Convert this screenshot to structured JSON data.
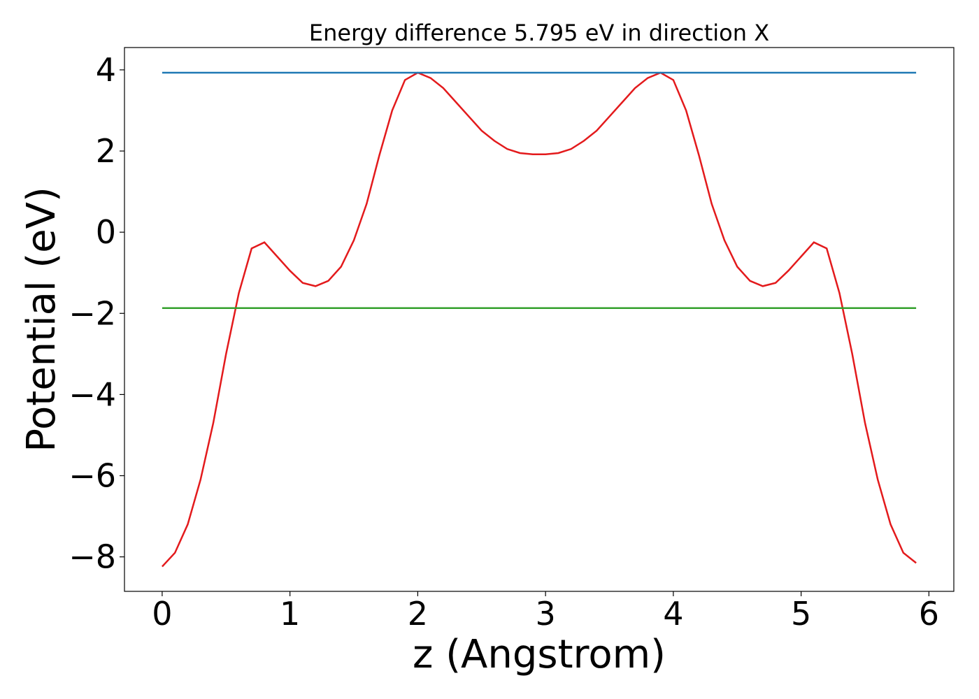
{
  "chart_data": {
    "type": "line",
    "title": "Energy difference 5.795 eV in direction X",
    "x_label": "z (Angstrom)",
    "y_label": "Potential (eV)",
    "xlim": [
      -0.295,
      6.195
    ],
    "ylim": [
      -8.85,
      4.55
    ],
    "xticks": [
      0,
      1,
      2,
      3,
      4,
      5,
      6
    ],
    "yticks": [
      {
        "value": -8,
        "label": "−8"
      },
      {
        "value": -6,
        "label": "−6"
      },
      {
        "value": -4,
        "label": "−4"
      },
      {
        "value": -2,
        "label": "−2"
      },
      0,
      2,
      4
    ],
    "series": [
      {
        "color": "#e31a1c",
        "x": [
          0,
          0.1,
          0.2,
          0.3,
          0.4,
          0.5,
          0.6,
          0.7,
          0.8,
          0.9,
          1.0,
          1.1,
          1.2,
          1.3,
          1.4,
          1.5,
          1.6,
          1.7,
          1.8,
          1.9,
          2.0,
          2.1,
          2.2,
          2.3,
          2.4,
          2.5,
          2.6,
          2.7,
          2.8,
          2.9,
          3.0,
          3.1,
          3.2,
          3.3,
          3.4,
          3.5,
          3.6,
          3.7,
          3.8,
          3.9,
          4.0,
          4.1,
          4.2,
          4.3,
          4.4,
          4.5,
          4.6,
          4.7,
          4.8,
          4.9,
          5.0,
          5.1,
          5.2,
          5.3,
          5.4,
          5.5,
          5.6,
          5.7,
          5.8,
          5.9
        ],
        "values": [
          -8.24,
          -7.9,
          -7.2,
          -6.1,
          -4.7,
          -3.0,
          -1.5,
          -0.4,
          -0.25,
          -0.6,
          -0.95,
          -1.25,
          -1.33,
          -1.2,
          -0.85,
          -0.2,
          0.7,
          1.9,
          3.0,
          3.75,
          3.93,
          3.8,
          3.55,
          3.2,
          2.85,
          2.5,
          2.25,
          2.05,
          1.95,
          1.92,
          1.92,
          1.95,
          2.05,
          2.25,
          2.5,
          2.85,
          3.2,
          3.55,
          3.8,
          3.93,
          3.75,
          3.0,
          1.9,
          0.7,
          -0.2,
          -0.85,
          -1.2,
          -1.33,
          -1.25,
          -0.95,
          -0.6,
          -0.25,
          -0.4,
          -1.5,
          -3.0,
          -4.7,
          -6.1,
          -7.2,
          -7.9,
          -8.15
        ]
      },
      {
        "color": "#1f78b4",
        "x": [
          0,
          5.9
        ],
        "values": [
          3.93,
          3.93
        ]
      },
      {
        "color": "#33a02c",
        "x": [
          0,
          5.9
        ],
        "values": [
          -1.87,
          -1.87
        ]
      }
    ]
  }
}
